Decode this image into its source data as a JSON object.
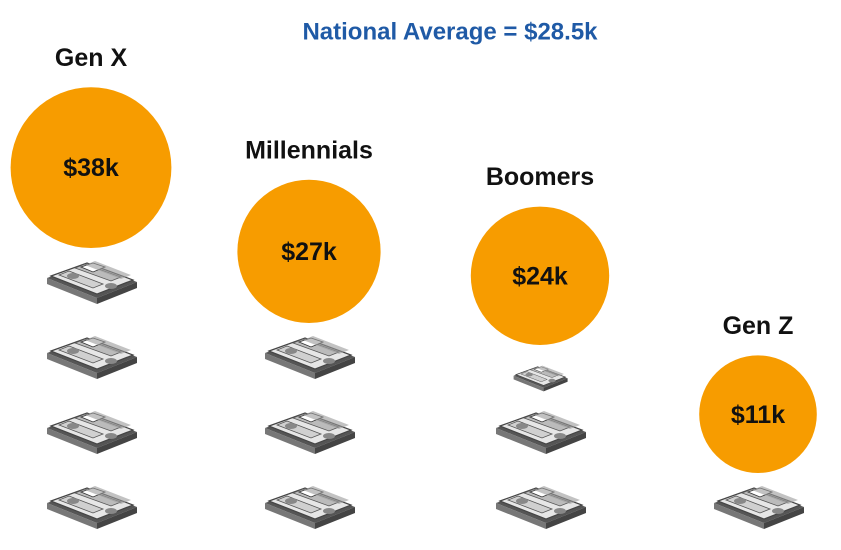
{
  "chart_data": {
    "type": "pictograph",
    "title": "National Average = $28.5k",
    "categories": [
      "Gen X",
      "Millennials",
      "Boomers",
      "Gen Z"
    ],
    "values": [
      38,
      27,
      24,
      11
    ],
    "value_labels": [
      "$38k",
      "$27k",
      "$24k",
      "$11k"
    ],
    "color": "#f79c00"
  }
}
